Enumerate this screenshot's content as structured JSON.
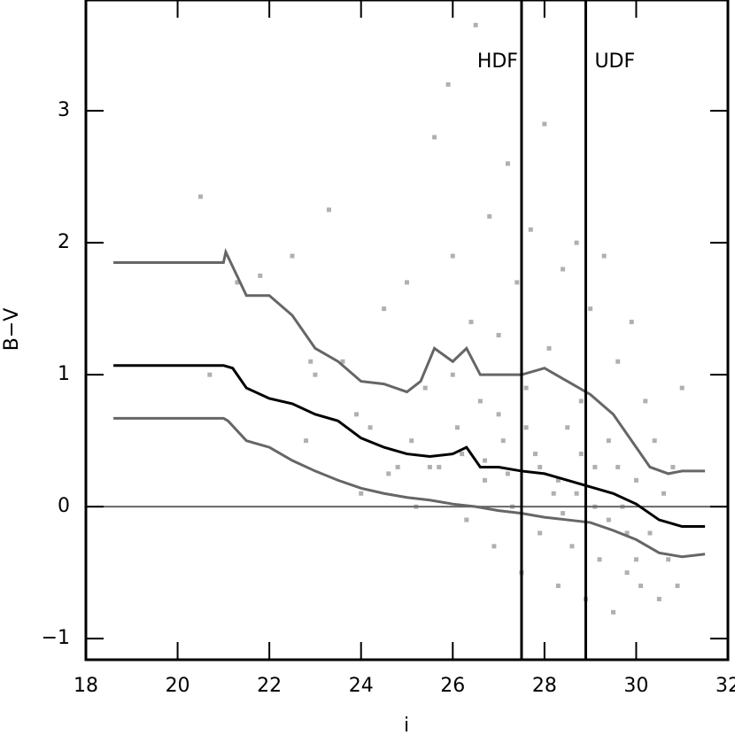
{
  "chart_data": {
    "type": "scatter",
    "x_label": "i",
    "y_label": "B−V",
    "xlim": [
      18,
      32
    ],
    "ylim": [
      -1.16,
      3.84
    ],
    "xticks": [
      18,
      20,
      22,
      24,
      26,
      28,
      30,
      32
    ],
    "yticks": [
      {
        "value": -1,
        "label": "−1"
      },
      0,
      1,
      2,
      3
    ],
    "hline": {
      "value": 0,
      "color": "#666666"
    },
    "vlines": [
      {
        "value": 27.5,
        "label": "HDF",
        "color": "#000000"
      },
      {
        "value": 28.9,
        "label": "UDF",
        "color": "#000000"
      }
    ],
    "series": [
      {
        "type": "scatter",
        "color": "#b0b0b0",
        "x": [
          20.5,
          20.7,
          21.3,
          21.8,
          22.5,
          22.8,
          23.0,
          23.3,
          23.6,
          24.0,
          24.2,
          24.5,
          24.8,
          25.0,
          25.2,
          25.4,
          25.6,
          25.7,
          25.9,
          26.0,
          26.1,
          26.3,
          26.4,
          26.5,
          26.6,
          26.7,
          26.8,
          26.9,
          27.0,
          27.1,
          27.2,
          27.3,
          27.4,
          27.5,
          27.6,
          27.7,
          27.8,
          27.9,
          28.0,
          28.1,
          28.2,
          28.3,
          28.4,
          28.5,
          28.6,
          28.7,
          28.8,
          28.9,
          29.0,
          29.1,
          29.2,
          29.3,
          29.4,
          29.5,
          29.6,
          29.7,
          29.8,
          29.9,
          30.0,
          30.1,
          30.2,
          30.3,
          30.4,
          30.5,
          30.6,
          30.7,
          30.8,
          30.9,
          31.0,
          27.9,
          28.3,
          28.7,
          29.1,
          27.2,
          26.7,
          26.2,
          25.5,
          24.6,
          29.4,
          29.8,
          28.4,
          27.6,
          28.8,
          29.6,
          30.0,
          27.0,
          26.0,
          25.1,
          23.9,
          22.9
        ],
        "values": [
          2.35,
          1.0,
          1.7,
          1.75,
          1.9,
          0.5,
          1.0,
          2.25,
          1.1,
          0.1,
          0.6,
          1.5,
          0.3,
          1.7,
          0.0,
          0.9,
          2.8,
          0.3,
          3.2,
          1.9,
          0.6,
          -0.1,
          1.4,
          3.65,
          0.8,
          0.2,
          2.2,
          -0.3,
          1.3,
          0.5,
          2.6,
          0.0,
          1.7,
          -0.5,
          0.9,
          2.1,
          0.4,
          -0.2,
          2.9,
          1.2,
          0.1,
          -0.6,
          1.8,
          0.6,
          -0.3,
          2.0,
          0.8,
          -0.7,
          1.5,
          0.3,
          -0.4,
          1.9,
          0.5,
          -0.8,
          1.1,
          0.0,
          -0.5,
          1.4,
          0.2,
          -0.6,
          0.8,
          -0.2,
          0.5,
          -0.7,
          0.1,
          -0.4,
          0.3,
          -0.6,
          0.9,
          0.3,
          0.2,
          0.1,
          0.0,
          0.25,
          0.35,
          0.4,
          0.3,
          0.25,
          -0.1,
          -0.2,
          -0.05,
          0.6,
          0.4,
          0.3,
          -0.4,
          0.7,
          1.0,
          0.5,
          0.7,
          1.1
        ]
      },
      {
        "type": "line",
        "color": "#666666",
        "x": [
          18.6,
          21.0,
          21.05,
          21.5,
          22.0,
          22.5,
          23.0,
          23.5,
          24.0,
          24.5,
          25.0,
          25.3,
          25.6,
          26.0,
          26.3,
          26.6,
          27.0,
          27.5,
          28.0,
          28.5,
          29.0,
          29.5,
          30.0,
          30.3,
          30.7,
          31.0,
          31.5
        ],
        "values": [
          1.85,
          1.85,
          1.93,
          1.6,
          1.6,
          1.45,
          1.2,
          1.1,
          0.95,
          0.93,
          0.87,
          0.95,
          1.2,
          1.1,
          1.2,
          1.0,
          1.0,
          1.0,
          1.05,
          0.95,
          0.85,
          0.7,
          0.45,
          0.3,
          0.25,
          0.27,
          0.27
        ]
      },
      {
        "type": "line",
        "color": "#000000",
        "x": [
          18.6,
          21.0,
          21.2,
          21.5,
          22.0,
          22.5,
          23.0,
          23.5,
          24.0,
          24.5,
          25.0,
          25.5,
          26.0,
          26.3,
          26.6,
          27.0,
          27.5,
          28.0,
          28.5,
          29.0,
          29.5,
          30.0,
          30.5,
          31.0,
          31.5
        ],
        "values": [
          1.07,
          1.07,
          1.05,
          0.9,
          0.82,
          0.78,
          0.7,
          0.65,
          0.52,
          0.45,
          0.4,
          0.38,
          0.4,
          0.45,
          0.3,
          0.3,
          0.27,
          0.25,
          0.2,
          0.15,
          0.1,
          0.02,
          -0.1,
          -0.15,
          -0.15
        ]
      },
      {
        "type": "line",
        "color": "#666666",
        "x": [
          18.6,
          21.0,
          21.1,
          21.5,
          22.0,
          22.5,
          23.0,
          23.5,
          24.0,
          24.5,
          25.0,
          25.5,
          26.0,
          26.5,
          27.0,
          27.5,
          28.0,
          28.5,
          29.0,
          29.5,
          30.0,
          30.5,
          31.0,
          31.5
        ],
        "values": [
          0.67,
          0.67,
          0.65,
          0.5,
          0.45,
          0.35,
          0.27,
          0.2,
          0.14,
          0.1,
          0.07,
          0.05,
          0.02,
          0.0,
          -0.03,
          -0.05,
          -0.08,
          -0.1,
          -0.12,
          -0.18,
          -0.25,
          -0.35,
          -0.38,
          -0.36
        ]
      }
    ]
  }
}
